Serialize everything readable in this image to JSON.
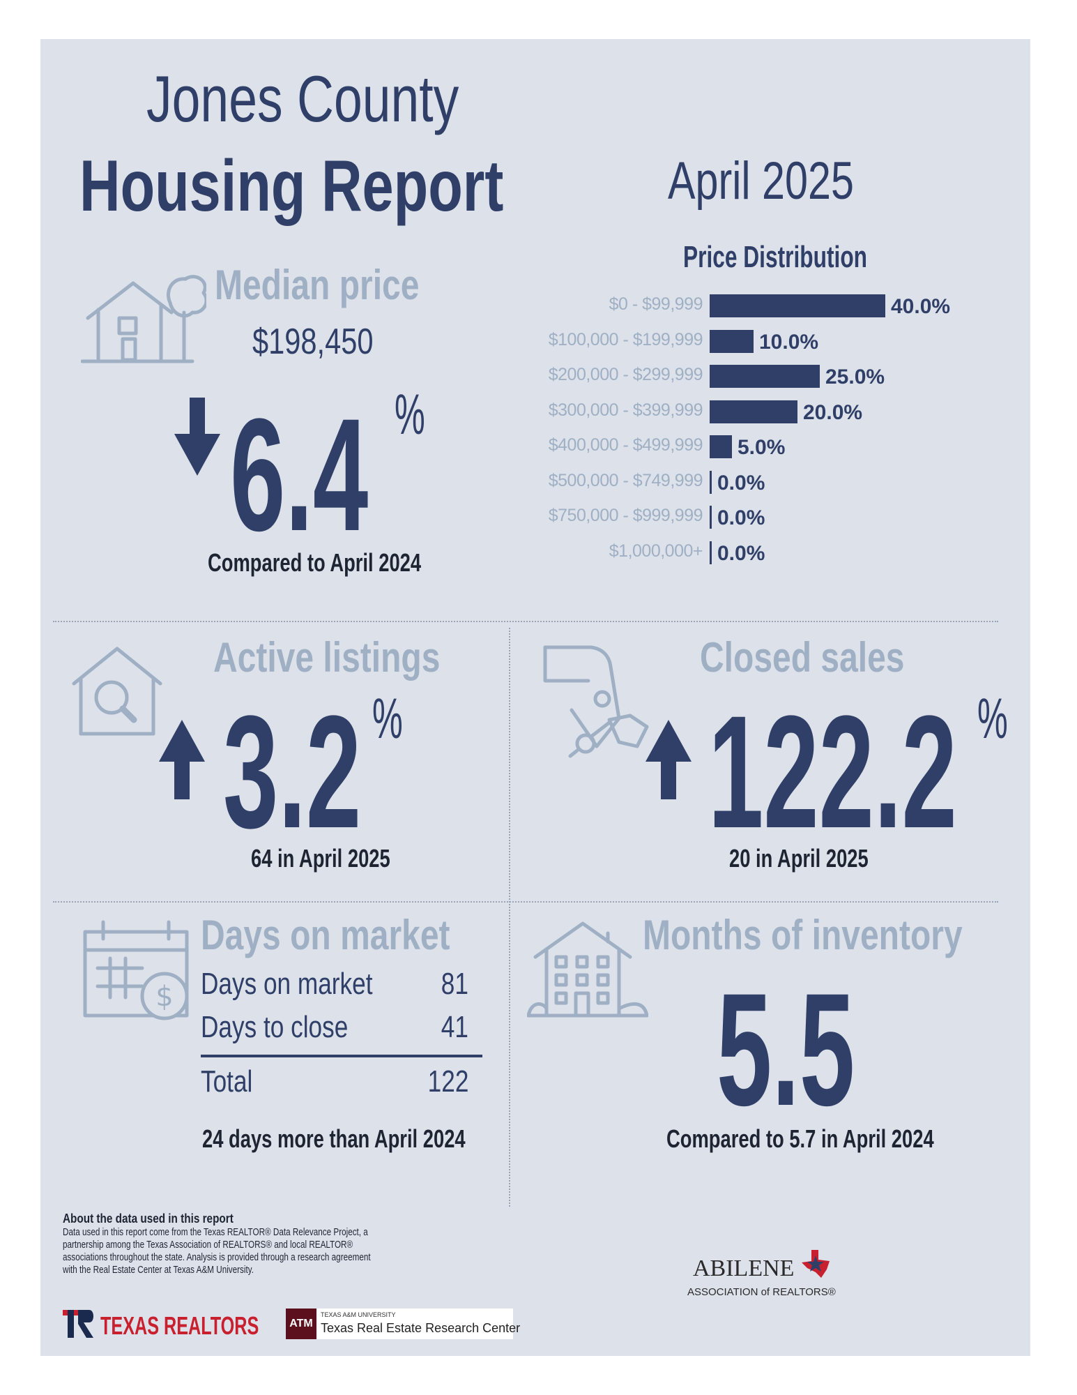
{
  "header": {
    "title_line1": "Jones County",
    "title_line2": "Housing Report",
    "period": "April 2025"
  },
  "median_price": {
    "heading": "Median price",
    "value": "$198,450",
    "change": "6.4",
    "unit": "%",
    "direction": "down",
    "note": "Compared to April 2024",
    "icon": "house-tree-icon"
  },
  "price_distribution": {
    "title": "Price Distribution",
    "chart_data": {
      "type": "bar",
      "orientation": "horizontal",
      "categories": [
        "$0 - $99,999",
        "$100,000 - $199,999",
        "$200,000 - $299,999",
        "$300,000 - $399,999",
        "$400,000 - $499,999",
        "$500,000 - $749,999",
        "$750,000 - $999,999",
        "$1,000,000+"
      ],
      "values": [
        40.0,
        10.0,
        25.0,
        20.0,
        5.0,
        0.0,
        0.0,
        0.0
      ],
      "value_labels": [
        "40.0%",
        "10.0%",
        "25.0%",
        "20.0%",
        "5.0%",
        "0.0%",
        "0.0%",
        "0.0%"
      ],
      "title": "Price Distribution",
      "xlim": [
        0,
        40
      ],
      "grid": false
    }
  },
  "active_listings": {
    "heading": "Active listings",
    "change": "3.2",
    "unit": "%",
    "direction": "up",
    "note": "64 in April 2025",
    "icon": "house-search-icon"
  },
  "closed_sales": {
    "heading": "Closed sales",
    "change": "122.2",
    "unit": "%",
    "direction": "up",
    "note": "20 in April 2025",
    "icon": "hand-key-icon"
  },
  "days_on_market": {
    "heading": "Days on market",
    "rows": [
      {
        "label": "Days on market",
        "value": "81"
      },
      {
        "label": "Days to close",
        "value": "41"
      }
    ],
    "total_label": "Total",
    "total_value": "122",
    "note": "24 days more than April 2024",
    "icon": "calendar-dollar-icon"
  },
  "months_inventory": {
    "heading": "Months of inventory",
    "value": "5.5",
    "note": "Compared to 5.7 in April 2024",
    "icon": "apartment-building-icon"
  },
  "footer": {
    "about_title": "About the data used in this report",
    "about_lines": [
      "Data used in this report come from the Texas REALTOR® Data Relevance Project, a",
      "partnership among the Texas Association of REALTORS® and local REALTOR®",
      "associations throughout the state. Analysis is provided through a research agreement",
      "with the Real Estate Center at Texas A&M University."
    ],
    "logo_texas_realtors": "TEXAS REALTORS",
    "logo_tamu_small": "TEXAS A&M UNIVERSITY",
    "logo_tamu": "Texas Real Estate Research Center",
    "logo_abilene_line1": "ABILENE",
    "logo_abilene_line2": "ASSOCIATION of REALTORS®"
  },
  "colors": {
    "navy": "#2f3f67",
    "pale": "#9fb0c4",
    "panel": "#dde1ea",
    "red": "#c8202f"
  }
}
